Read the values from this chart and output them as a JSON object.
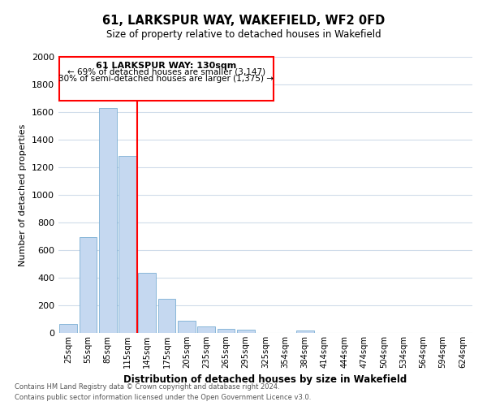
{
  "title": "61, LARKSPUR WAY, WAKEFIELD, WF2 0FD",
  "subtitle": "Size of property relative to detached houses in Wakefield",
  "xlabel": "Distribution of detached houses by size in Wakefield",
  "ylabel": "Number of detached properties",
  "bar_color": "#c5d8f0",
  "bar_edge_color": "#7bafd4",
  "background_color": "#ffffff",
  "grid_color": "#d0dcea",
  "categories": [
    "25sqm",
    "55sqm",
    "85sqm",
    "115sqm",
    "145sqm",
    "175sqm",
    "205sqm",
    "235sqm",
    "265sqm",
    "295sqm",
    "325sqm",
    "354sqm",
    "384sqm",
    "414sqm",
    "444sqm",
    "474sqm",
    "504sqm",
    "534sqm",
    "564sqm",
    "594sqm",
    "624sqm"
  ],
  "values": [
    65,
    695,
    1630,
    1280,
    435,
    250,
    88,
    50,
    28,
    22,
    0,
    0,
    15,
    0,
    0,
    0,
    0,
    0,
    0,
    0,
    0
  ],
  "ylim": [
    0,
    2000
  ],
  "yticks": [
    0,
    200,
    400,
    600,
    800,
    1000,
    1200,
    1400,
    1600,
    1800,
    2000
  ],
  "annotation_title": "61 LARKSPUR WAY: 130sqm",
  "annotation_line1": "← 69% of detached houses are smaller (3,147)",
  "annotation_line2": "30% of semi-detached houses are larger (1,375) →",
  "footnote1": "Contains HM Land Registry data © Crown copyright and database right 2024.",
  "footnote2": "Contains public sector information licensed under the Open Government Licence v3.0.",
  "red_line_x": 3.5
}
